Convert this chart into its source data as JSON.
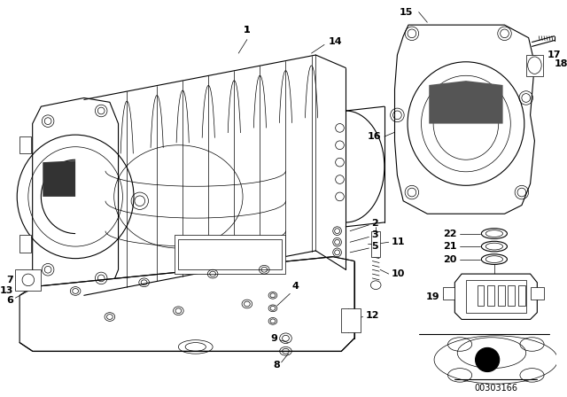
{
  "bg_color": "#ffffff",
  "line_color": "#000000",
  "fig_width": 6.4,
  "fig_height": 4.48,
  "dpi": 100,
  "doc_number": "00303166"
}
